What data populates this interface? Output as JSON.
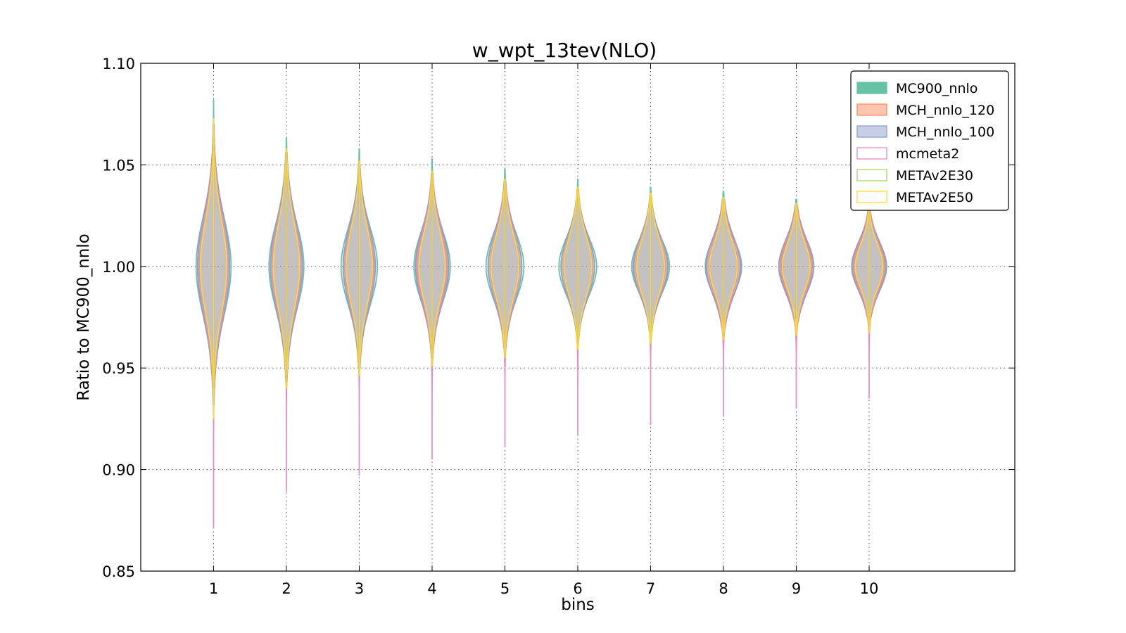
{
  "chart_data": {
    "type": "violin",
    "title": "w_wpt_13tev(NLO)",
    "xlabel": "bins",
    "ylabel": "Ratio to MC900_nnlo",
    "xlim": [
      0,
      12
    ],
    "ylim": [
      0.85,
      1.1
    ],
    "x_ticks": [
      1,
      2,
      3,
      4,
      5,
      6,
      7,
      8,
      9,
      10
    ],
    "x_tick_labels": [
      "1",
      "2",
      "3",
      "4",
      "5",
      "6",
      "7",
      "8",
      "9",
      "10"
    ],
    "y_ticks": [
      0.85,
      0.9,
      0.95,
      1.0,
      1.05,
      1.1
    ],
    "y_tick_labels": [
      "0.85",
      "0.90",
      "0.95",
      "1.00",
      "1.05",
      "1.10"
    ],
    "grid": true,
    "legend_position": "top-right",
    "bins": [
      1,
      2,
      3,
      4,
      5,
      6,
      7,
      8,
      9,
      10
    ],
    "series": [
      {
        "name": "MC900_nnlo",
        "fill": "#66c2a5",
        "edge": "#66c2a5",
        "filled": true,
        "center": [
          1.0,
          1.0,
          1.0,
          1.0,
          1.0,
          1.0,
          1.0,
          1.0,
          1.0,
          1.0
        ],
        "sigma": [
          0.024,
          0.021,
          0.019,
          0.017,
          0.016,
          0.014,
          0.013,
          0.013,
          0.012,
          0.011
        ],
        "halfwidth": [
          0.24,
          0.24,
          0.25,
          0.25,
          0.26,
          0.26,
          0.26,
          0.25,
          0.24,
          0.23
        ],
        "min": [
          0.935,
          0.945,
          0.952,
          0.957,
          0.962,
          0.966,
          0.97,
          0.972,
          0.975,
          0.977
        ],
        "max": [
          1.082,
          1.063,
          1.058,
          1.053,
          1.048,
          1.043,
          1.039,
          1.037,
          1.033,
          1.03
        ]
      },
      {
        "name": "MCH_nnlo_120",
        "fill": "#fc8d62",
        "edge": "#fc8d62",
        "filled": true,
        "center": [
          1.0,
          1.0,
          1.0,
          1.0,
          1.0,
          1.0,
          1.0,
          1.0,
          1.0,
          1.0
        ],
        "sigma": [
          0.025,
          0.022,
          0.02,
          0.018,
          0.017,
          0.015,
          0.014,
          0.014,
          0.013,
          0.012
        ],
        "halfwidth": [
          0.22,
          0.22,
          0.22,
          0.22,
          0.23,
          0.23,
          0.23,
          0.23,
          0.22,
          0.22
        ],
        "min": [
          0.932,
          0.943,
          0.95,
          0.955,
          0.96,
          0.964,
          0.968,
          0.97,
          0.973,
          0.975
        ],
        "max": [
          1.07,
          1.056,
          1.05,
          1.046,
          1.042,
          1.038,
          1.035,
          1.033,
          1.03,
          1.028
        ]
      },
      {
        "name": "MCH_nnlo_100",
        "fill": "#8da0cb",
        "edge": "#8da0cb",
        "filled": true,
        "center": [
          1.0,
          1.0,
          1.0,
          1.0,
          1.0,
          1.0,
          1.0,
          1.0,
          1.0,
          1.0
        ],
        "sigma": [
          0.025,
          0.022,
          0.02,
          0.018,
          0.017,
          0.015,
          0.014,
          0.014,
          0.013,
          0.012
        ],
        "halfwidth": [
          0.22,
          0.22,
          0.22,
          0.23,
          0.23,
          0.23,
          0.24,
          0.24,
          0.24,
          0.24
        ],
        "min": [
          0.932,
          0.943,
          0.95,
          0.955,
          0.96,
          0.964,
          0.968,
          0.97,
          0.973,
          0.975
        ],
        "max": [
          1.07,
          1.056,
          1.05,
          1.046,
          1.042,
          1.038,
          1.035,
          1.033,
          1.03,
          1.028
        ]
      },
      {
        "name": "mcmeta2",
        "fill": "#e78ac3",
        "edge": "#e78ac3",
        "filled": false,
        "center": [
          1.0,
          1.0,
          1.0,
          1.0,
          1.0,
          1.0,
          1.0,
          1.0,
          1.0,
          1.0
        ],
        "sigma": [
          0.024,
          0.021,
          0.019,
          0.018,
          0.017,
          0.015,
          0.014,
          0.014,
          0.013,
          0.012
        ],
        "halfwidth": [
          0.2,
          0.2,
          0.2,
          0.2,
          0.2,
          0.2,
          0.2,
          0.2,
          0.2,
          0.2
        ],
        "min": [
          0.871,
          0.889,
          0.897,
          0.905,
          0.911,
          0.917,
          0.922,
          0.926,
          0.93,
          0.935
        ],
        "max": [
          1.07,
          1.057,
          1.05,
          1.046,
          1.042,
          1.038,
          1.035,
          1.033,
          1.03,
          1.028
        ]
      },
      {
        "name": "METAv2E30",
        "fill": "#a6d854",
        "edge": "#a6d854",
        "filled": false,
        "center": [
          1.0,
          1.0,
          1.0,
          1.0,
          1.0,
          1.0,
          1.0,
          1.0,
          1.0,
          1.0
        ],
        "sigma": [
          0.023,
          0.021,
          0.019,
          0.017,
          0.016,
          0.015,
          0.014,
          0.013,
          0.012,
          0.011
        ],
        "halfwidth": [
          0.18,
          0.18,
          0.18,
          0.18,
          0.19,
          0.19,
          0.19,
          0.19,
          0.19,
          0.19
        ],
        "min": [
          0.925,
          0.94,
          0.946,
          0.951,
          0.955,
          0.959,
          0.962,
          0.964,
          0.966,
          0.967
        ],
        "max": [
          1.073,
          1.058,
          1.052,
          1.047,
          1.043,
          1.039,
          1.036,
          1.034,
          1.031,
          1.029
        ]
      },
      {
        "name": "METAv2E50",
        "fill": "#ffd92f",
        "edge": "#ffd92f",
        "filled": false,
        "center": [
          1.0,
          1.0,
          1.0,
          1.0,
          1.0,
          1.0,
          1.0,
          1.0,
          1.0,
          1.0
        ],
        "sigma": [
          0.023,
          0.021,
          0.019,
          0.017,
          0.016,
          0.015,
          0.014,
          0.013,
          0.012,
          0.011
        ],
        "halfwidth": [
          0.18,
          0.18,
          0.18,
          0.18,
          0.19,
          0.19,
          0.19,
          0.19,
          0.19,
          0.19
        ],
        "min": [
          0.925,
          0.94,
          0.946,
          0.951,
          0.955,
          0.959,
          0.962,
          0.964,
          0.966,
          0.967
        ],
        "max": [
          1.073,
          1.058,
          1.052,
          1.047,
          1.043,
          1.039,
          1.036,
          1.034,
          1.031,
          1.029
        ]
      }
    ]
  }
}
